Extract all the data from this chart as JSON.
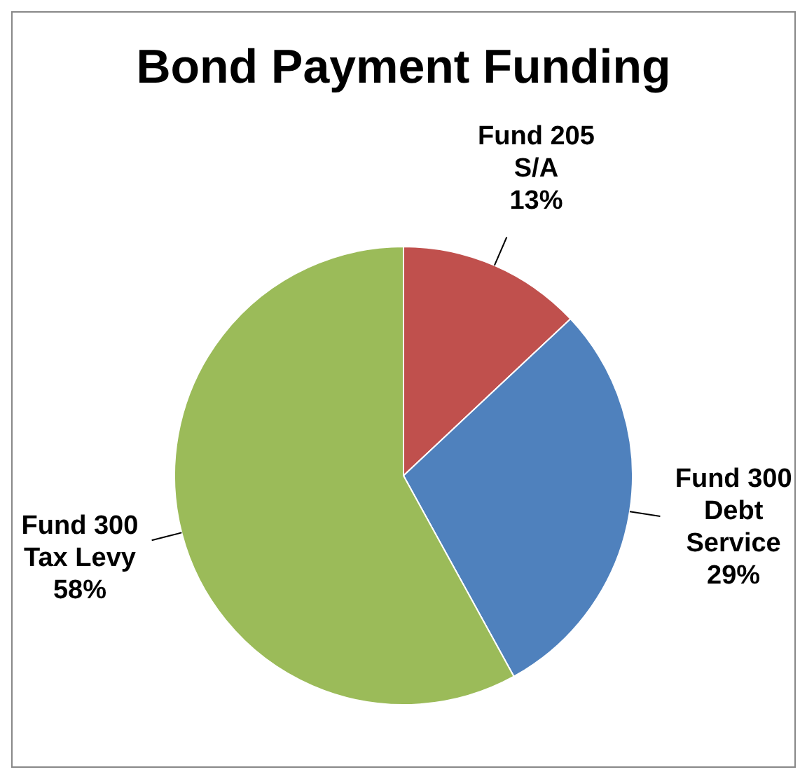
{
  "chart_data": {
    "type": "pie",
    "title": "Bond Payment Funding",
    "categories": [
      "Fund 205 S/A",
      "Fund 300 Debt Service",
      "Fund 300 Tax Levy"
    ],
    "values": [
      13,
      29,
      58
    ],
    "value_labels": [
      "13%",
      "29%",
      "58%"
    ],
    "colors": [
      "#c0504d",
      "#4f81bd",
      "#9bbb59"
    ],
    "legend": false
  }
}
